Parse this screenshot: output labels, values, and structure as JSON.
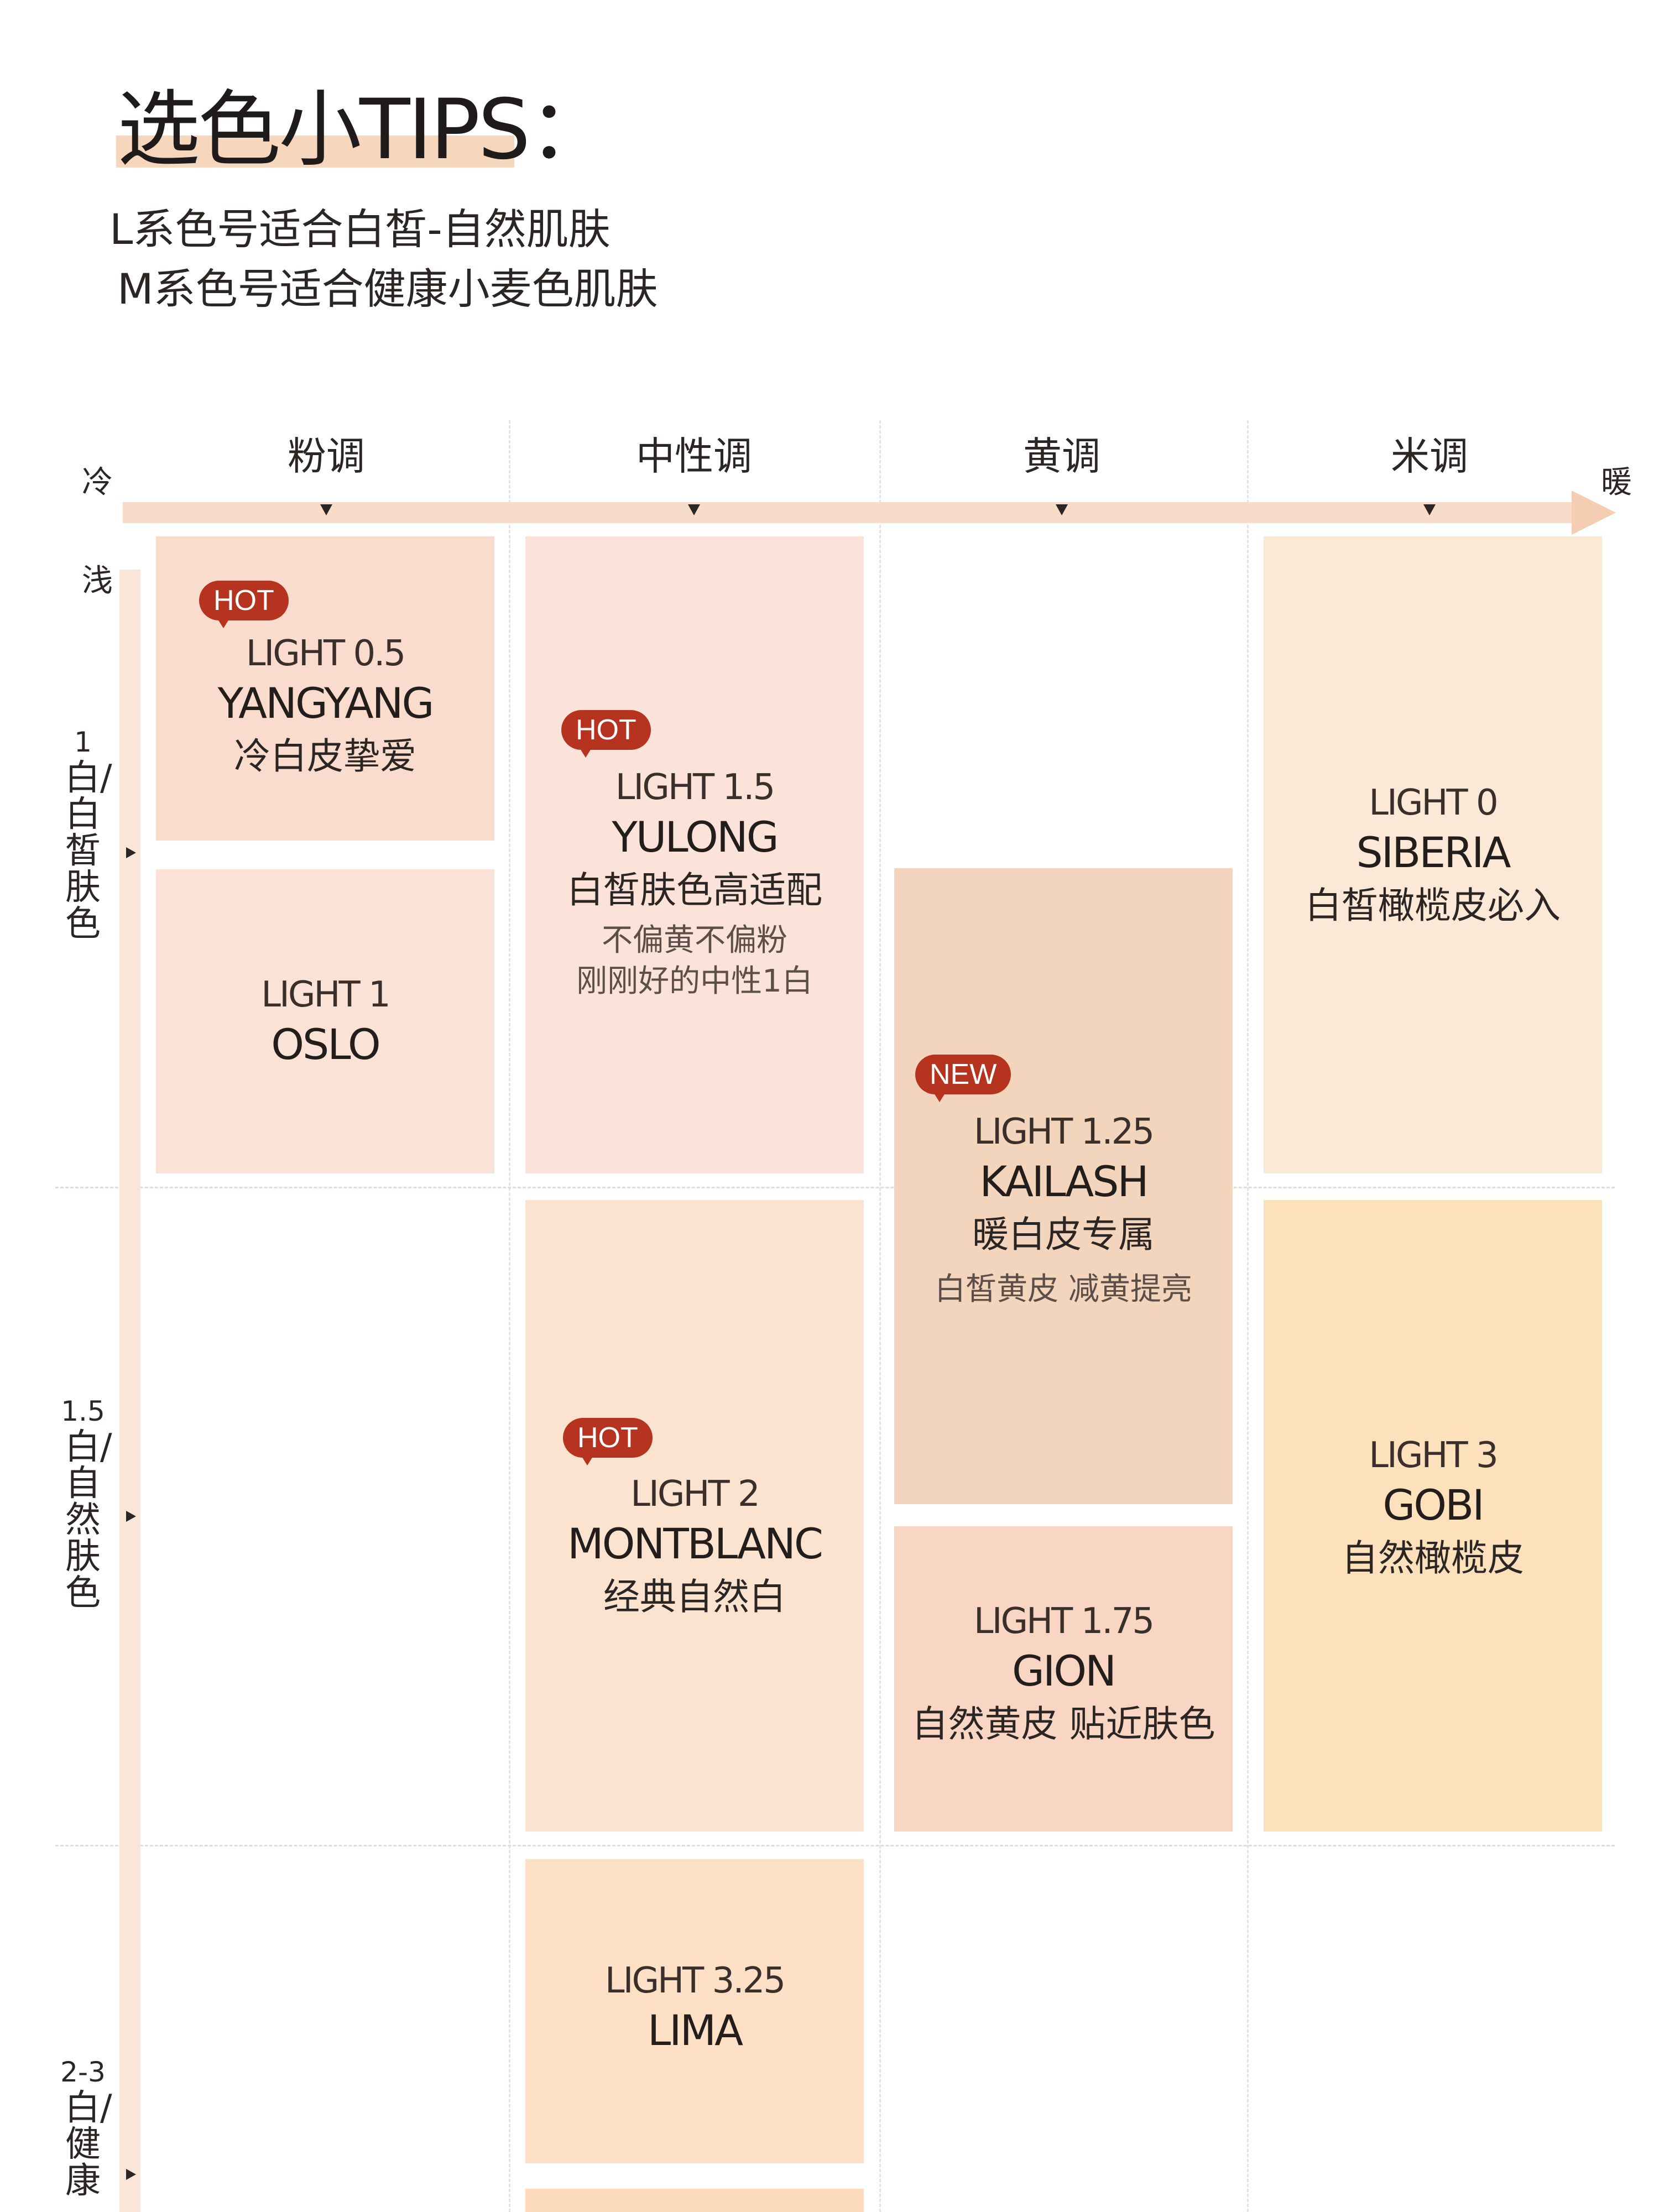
{
  "header": {
    "title": "选色小TIPS：",
    "line1": "L系色号适合白皙-自然肌肤",
    "line2": "M系色号适合健康小麦色肌肤"
  },
  "axis": {
    "cold": "冷",
    "warm": "暖",
    "light": "浅",
    "columns": [
      "粉调",
      "中性调",
      "黄调",
      "米调"
    ],
    "rows": [
      {
        "num": "1",
        "label": "白/白皙肤色"
      },
      {
        "num": "1.5",
        "label": "白/自然肤色"
      },
      {
        "num": "2-3",
        "label": "白/健康"
      }
    ]
  },
  "cards": {
    "yangyang": {
      "badge": "HOT",
      "shade": "LIGHT 0.5",
      "name": "YANGYANG",
      "desc": "冷白皮挚爱",
      "color": "#f9dccd"
    },
    "oslo": {
      "shade": "LIGHT 1",
      "name": "OSLO",
      "color": "#fbe2d6"
    },
    "yulong": {
      "badge": "HOT",
      "shade": "LIGHT 1.5",
      "name": "YULONG",
      "desc": "白皙肤色高适配",
      "note1": "不偏黄不偏粉",
      "note2": "刚刚好的中性1白",
      "color": "#fce3d9"
    },
    "siberia": {
      "shade": "LIGHT 0",
      "name": "SIBERIA",
      "desc": "白皙橄榄皮必入",
      "color": "#fbe8d6"
    },
    "kailash": {
      "badge": "NEW",
      "shade": "LIGHT 1.25",
      "name": "KAILASH",
      "desc": "暖白皮专属",
      "note1": "白皙黄皮 减黄提亮",
      "color": "#f3d5bd"
    },
    "montblanc": {
      "badge": "HOT",
      "shade": "LIGHT 2",
      "name": "MONTBLANC",
      "desc": "经典自然白",
      "color": "#fbe3cf"
    },
    "gion": {
      "shade": "LIGHT 1.75",
      "name": "GION",
      "desc": "自然黄皮 贴近肤色",
      "color": "#f9d6c4"
    },
    "gobi": {
      "shade": "LIGHT 3",
      "name": "GOBI",
      "desc": "自然橄榄皮",
      "color": "#fde0bc"
    },
    "lima": {
      "shade": "LIGHT 3.25",
      "name": "LIMA",
      "color": "#fde0c6"
    },
    "partial": {
      "color": "#fcdcbc"
    }
  }
}
